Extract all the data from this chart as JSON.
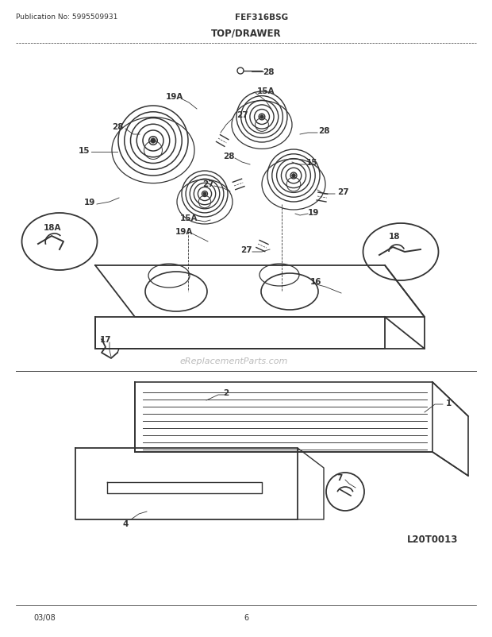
{
  "title": "TOP/DRAWER",
  "pub_no": "Publication No: 5995509931",
  "model": "FEF316BSG",
  "date": "03/08",
  "page": "6",
  "diagram_id": "L20T0013",
  "bg_color": "#ffffff",
  "line_color": "#333333",
  "text_color": "#333333",
  "watermark": "eReplacementParts.com"
}
